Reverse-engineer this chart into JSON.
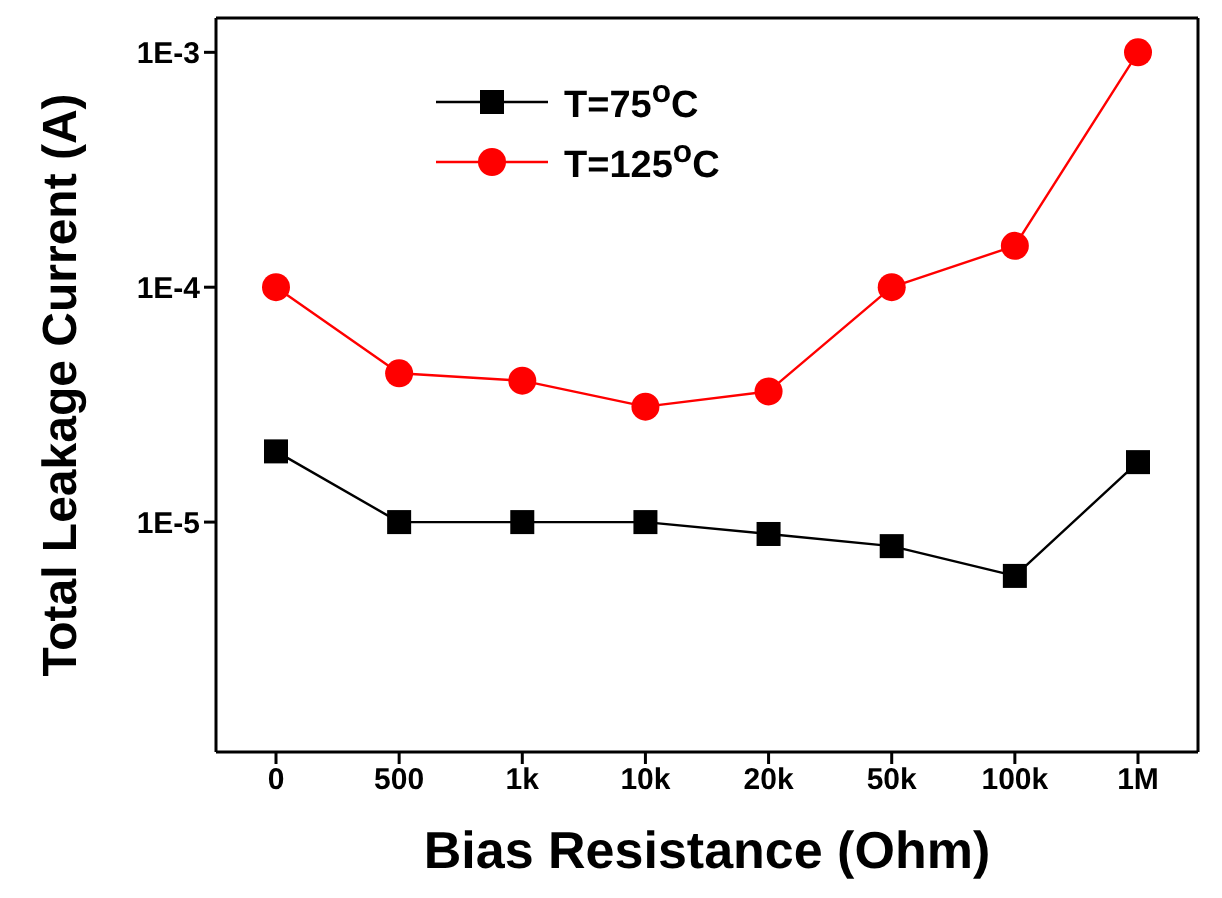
{
  "chart_data": {
    "type": "line",
    "xlabel": "Bias Resistance (Ohm)",
    "ylabel": "Total Leakage Current (A)",
    "categories": [
      "0",
      "500",
      "1k",
      "10k",
      "20k",
      "50k",
      "100k",
      "1M"
    ],
    "series": [
      {
        "name": "T=75$^{o}$C",
        "color": "#000000",
        "marker": "square",
        "values": [
          2e-05,
          1e-05,
          1e-05,
          1e-05,
          8.9e-06,
          7.9e-06,
          5.9e-06,
          1.8e-05
        ]
      },
      {
        "name": "T=125$^{o}$C",
        "color": "#ff0000",
        "marker": "circle",
        "values": [
          0.0001,
          4.3e-05,
          4e-05,
          3.1e-05,
          3.6e-05,
          0.0001,
          0.00015,
          0.001
        ]
      }
    ],
    "log": "y",
    "ylim": [
      1.05e-06,
      0.0014
    ],
    "yticks": [
      {
        "value": 1e-05,
        "label": "1E-5"
      },
      {
        "value": 0.0001,
        "label": "1E-4"
      },
      {
        "value": 0.001,
        "label": "1E-3"
      }
    ],
    "legend": "top left",
    "grid": false,
    "line_style": "solid"
  }
}
